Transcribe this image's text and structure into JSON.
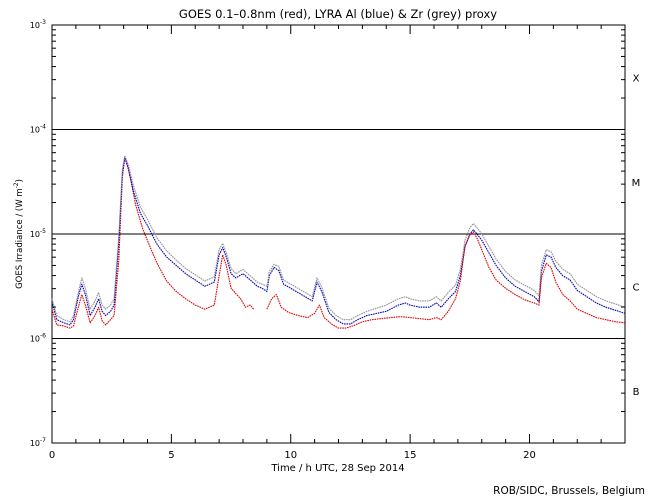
{
  "chart_data": {
    "type": "line",
    "title": "GOES 0.1–0.8nm (red), LYRA Al (blue) & Zr (grey) proxy",
    "xlabel": "Time / h UTC, 28 Sep 2014",
    "ylabel_prefix": "GOES Irradiance / (W m",
    "ylabel_exp": "-2",
    "ylabel_suffix": ")",
    "xlim": [
      0,
      24
    ],
    "ylim_log10": [
      -7,
      -3
    ],
    "x_ticks": [
      {
        "value": 0,
        "label": "0"
      },
      {
        "value": 5,
        "label": "5"
      },
      {
        "value": 10,
        "label": "10"
      },
      {
        "value": 15,
        "label": "15"
      },
      {
        "value": 20,
        "label": "20"
      }
    ],
    "y_ticks": [
      {
        "exp": -3,
        "base": "10",
        "sup": "-3"
      },
      {
        "exp": -4,
        "base": "10",
        "sup": "-4"
      },
      {
        "exp": -5,
        "base": "10",
        "sup": "-5"
      },
      {
        "exp": -6,
        "base": "10",
        "sup": "-6"
      },
      {
        "exp": -7,
        "base": "10",
        "sup": "-7"
      }
    ],
    "flare_class_lines": [
      -4,
      -5,
      -6
    ],
    "flare_classes": [
      {
        "label": "X",
        "exp": -3.5
      },
      {
        "label": "M",
        "exp": -4.5
      },
      {
        "label": "C",
        "exp": -5.5
      },
      {
        "label": "B",
        "exp": -6.5
      }
    ],
    "series": [
      {
        "name": "GOES 0.1-0.8nm",
        "color": "#e00000",
        "points": [
          [
            0,
            -5.72
          ],
          [
            0.2,
            -5.87
          ],
          [
            0.5,
            -5.88
          ],
          [
            0.75,
            -5.9
          ],
          [
            0.9,
            -5.88
          ],
          [
            1.1,
            -5.7
          ],
          [
            1.25,
            -5.58
          ],
          [
            1.4,
            -5.68
          ],
          [
            1.6,
            -5.85
          ],
          [
            1.8,
            -5.78
          ],
          [
            1.95,
            -5.7
          ],
          [
            2.1,
            -5.83
          ],
          [
            2.25,
            -5.87
          ],
          [
            2.45,
            -5.82
          ],
          [
            2.6,
            -5.78
          ],
          [
            2.8,
            -5.25
          ],
          [
            2.95,
            -4.45
          ],
          [
            3.05,
            -4.28
          ],
          [
            3.15,
            -4.32
          ],
          [
            3.3,
            -4.48
          ],
          [
            3.5,
            -4.72
          ],
          [
            3.8,
            -4.95
          ],
          [
            4.1,
            -5.12
          ],
          [
            4.4,
            -5.28
          ],
          [
            4.8,
            -5.45
          ],
          [
            5.2,
            -5.55
          ],
          [
            5.6,
            -5.62
          ],
          [
            6.0,
            -5.68
          ],
          [
            6.4,
            -5.72
          ],
          [
            6.8,
            -5.68
          ],
          [
            7.0,
            -5.4
          ],
          [
            7.15,
            -5.2
          ],
          [
            7.3,
            -5.3
          ],
          [
            7.5,
            -5.52
          ],
          [
            7.7,
            -5.57
          ],
          [
            7.9,
            -5.62
          ],
          [
            8.1,
            -5.7
          ],
          [
            8.3,
            -5.68
          ],
          [
            8.45,
            -5.72
          ]
        ]
      },
      {
        "name": "LYRA Al proxy",
        "color": "#0000c0",
        "points": [
          [
            0,
            -5.65
          ],
          [
            0.2,
            -5.82
          ],
          [
            0.5,
            -5.85
          ],
          [
            0.75,
            -5.87
          ],
          [
            0.9,
            -5.82
          ],
          [
            1.1,
            -5.6
          ],
          [
            1.25,
            -5.48
          ],
          [
            1.4,
            -5.58
          ],
          [
            1.6,
            -5.78
          ],
          [
            1.8,
            -5.7
          ],
          [
            1.95,
            -5.62
          ],
          [
            2.1,
            -5.74
          ],
          [
            2.25,
            -5.78
          ],
          [
            2.45,
            -5.74
          ],
          [
            2.6,
            -5.68
          ],
          [
            2.8,
            -5.08
          ],
          [
            2.95,
            -4.42
          ],
          [
            3.05,
            -4.27
          ],
          [
            3.2,
            -4.38
          ],
          [
            3.4,
            -4.58
          ],
          [
            3.7,
            -4.8
          ],
          [
            4.0,
            -4.92
          ],
          [
            4.4,
            -5.1
          ],
          [
            4.8,
            -5.22
          ],
          [
            5.2,
            -5.3
          ],
          [
            5.6,
            -5.38
          ],
          [
            6.0,
            -5.44
          ],
          [
            6.4,
            -5.5
          ],
          [
            6.8,
            -5.46
          ],
          [
            7.0,
            -5.2
          ],
          [
            7.15,
            -5.13
          ],
          [
            7.3,
            -5.22
          ],
          [
            7.5,
            -5.38
          ],
          [
            7.7,
            -5.42
          ],
          [
            8.0,
            -5.38
          ],
          [
            8.3,
            -5.44
          ],
          [
            8.6,
            -5.5
          ],
          [
            8.8,
            -5.52
          ],
          [
            9.0,
            -5.55
          ],
          [
            9.1,
            -5.4
          ],
          [
            9.3,
            -5.32
          ],
          [
            9.5,
            -5.35
          ],
          [
            9.7,
            -5.48
          ],
          [
            10.0,
            -5.52
          ],
          [
            10.3,
            -5.56
          ],
          [
            10.6,
            -5.6
          ],
          [
            10.9,
            -5.64
          ],
          [
            11.1,
            -5.46
          ],
          [
            11.3,
            -5.55
          ],
          [
            11.6,
            -5.75
          ],
          [
            11.9,
            -5.82
          ],
          [
            12.2,
            -5.86
          ],
          [
            12.5,
            -5.86
          ],
          [
            12.8,
            -5.82
          ],
          [
            13.2,
            -5.78
          ],
          [
            13.6,
            -5.76
          ],
          [
            14.0,
            -5.74
          ],
          [
            14.5,
            -5.68
          ],
          [
            14.8,
            -5.66
          ],
          [
            15.0,
            -5.68
          ],
          [
            15.4,
            -5.7
          ],
          [
            15.8,
            -5.7
          ],
          [
            16.1,
            -5.66
          ],
          [
            16.3,
            -5.7
          ],
          [
            16.6,
            -5.62
          ],
          [
            16.9,
            -5.55
          ],
          [
            17.1,
            -5.4
          ],
          [
            17.3,
            -5.12
          ],
          [
            17.5,
            -5.0
          ],
          [
            17.65,
            -4.96
          ],
          [
            17.8,
            -5.0
          ],
          [
            18.0,
            -5.06
          ],
          [
            18.3,
            -5.18
          ],
          [
            18.6,
            -5.3
          ],
          [
            19.0,
            -5.42
          ],
          [
            19.4,
            -5.5
          ],
          [
            19.8,
            -5.55
          ],
          [
            20.2,
            -5.6
          ],
          [
            20.4,
            -5.65
          ],
          [
            20.5,
            -5.36
          ],
          [
            20.7,
            -5.2
          ],
          [
            20.9,
            -5.22
          ],
          [
            21.1,
            -5.32
          ],
          [
            21.4,
            -5.4
          ],
          [
            21.7,
            -5.44
          ],
          [
            22.0,
            -5.54
          ],
          [
            22.4,
            -5.6
          ],
          [
            22.8,
            -5.66
          ],
          [
            23.2,
            -5.7
          ],
          [
            23.6,
            -5.73
          ],
          [
            24.0,
            -5.76
          ]
        ]
      },
      {
        "name": "LYRA Zr proxy",
        "color": "#909090",
        "points": [
          [
            0,
            -5.62
          ],
          [
            0.2,
            -5.78
          ],
          [
            0.5,
            -5.82
          ],
          [
            0.75,
            -5.84
          ],
          [
            0.9,
            -5.78
          ],
          [
            1.1,
            -5.56
          ],
          [
            1.25,
            -5.42
          ],
          [
            1.4,
            -5.52
          ],
          [
            1.6,
            -5.72
          ],
          [
            1.8,
            -5.64
          ],
          [
            1.95,
            -5.56
          ],
          [
            2.1,
            -5.68
          ],
          [
            2.25,
            -5.72
          ],
          [
            2.45,
            -5.68
          ],
          [
            2.6,
            -5.62
          ],
          [
            2.8,
            -5.02
          ],
          [
            2.95,
            -4.38
          ],
          [
            3.05,
            -4.25
          ],
          [
            3.2,
            -4.34
          ],
          [
            3.4,
            -4.53
          ],
          [
            3.7,
            -4.74
          ],
          [
            4.0,
            -4.86
          ],
          [
            4.4,
            -5.04
          ],
          [
            4.8,
            -5.16
          ],
          [
            5.2,
            -5.25
          ],
          [
            5.6,
            -5.33
          ],
          [
            6.0,
            -5.39
          ],
          [
            6.4,
            -5.45
          ],
          [
            6.8,
            -5.41
          ],
          [
            7.0,
            -5.15
          ],
          [
            7.15,
            -5.09
          ],
          [
            7.3,
            -5.18
          ],
          [
            7.5,
            -5.33
          ],
          [
            7.7,
            -5.38
          ],
          [
            8.0,
            -5.34
          ],
          [
            8.3,
            -5.4
          ],
          [
            8.6,
            -5.46
          ],
          [
            8.8,
            -5.48
          ],
          [
            9.0,
            -5.5
          ],
          [
            9.1,
            -5.36
          ],
          [
            9.3,
            -5.29
          ],
          [
            9.5,
            -5.31
          ],
          [
            9.7,
            -5.44
          ],
          [
            10.0,
            -5.48
          ],
          [
            10.3,
            -5.52
          ],
          [
            10.6,
            -5.56
          ],
          [
            10.9,
            -5.6
          ],
          [
            11.1,
            -5.42
          ],
          [
            11.3,
            -5.51
          ],
          [
            11.6,
            -5.71
          ],
          [
            11.9,
            -5.78
          ],
          [
            12.2,
            -5.82
          ],
          [
            12.5,
            -5.82
          ],
          [
            12.8,
            -5.78
          ],
          [
            13.2,
            -5.74
          ],
          [
            13.6,
            -5.71
          ],
          [
            14.0,
            -5.68
          ],
          [
            14.5,
            -5.62
          ],
          [
            14.8,
            -5.6
          ],
          [
            15.0,
            -5.62
          ],
          [
            15.4,
            -5.64
          ],
          [
            15.8,
            -5.64
          ],
          [
            16.1,
            -5.6
          ],
          [
            16.3,
            -5.64
          ],
          [
            16.6,
            -5.56
          ],
          [
            16.9,
            -5.49
          ],
          [
            17.1,
            -5.34
          ],
          [
            17.3,
            -5.06
          ],
          [
            17.5,
            -4.94
          ],
          [
            17.65,
            -4.9
          ],
          [
            17.8,
            -4.94
          ],
          [
            18.0,
            -5.0
          ],
          [
            18.3,
            -5.12
          ],
          [
            18.6,
            -5.24
          ],
          [
            19.0,
            -5.36
          ],
          [
            19.4,
            -5.44
          ],
          [
            19.8,
            -5.49
          ],
          [
            20.2,
            -5.54
          ],
          [
            20.4,
            -5.59
          ],
          [
            20.5,
            -5.3
          ],
          [
            20.7,
            -5.15
          ],
          [
            20.9,
            -5.17
          ],
          [
            21.1,
            -5.26
          ],
          [
            21.4,
            -5.34
          ],
          [
            21.7,
            -5.38
          ],
          [
            22.0,
            -5.48
          ],
          [
            22.4,
            -5.54
          ],
          [
            22.8,
            -5.6
          ],
          [
            23.2,
            -5.64
          ],
          [
            23.6,
            -5.67
          ],
          [
            24.0,
            -5.7
          ]
        ]
      },
      {
        "name": "GOES 0.1-0.8nm (cont.)",
        "color": "#e00000",
        "points": [
          [
            9.0,
            -5.72
          ],
          [
            9.2,
            -5.62
          ],
          [
            9.4,
            -5.58
          ],
          [
            9.6,
            -5.7
          ],
          [
            9.9,
            -5.75
          ],
          [
            10.3,
            -5.78
          ],
          [
            10.7,
            -5.8
          ],
          [
            11.0,
            -5.76
          ],
          [
            11.2,
            -5.68
          ],
          [
            11.4,
            -5.8
          ],
          [
            11.7,
            -5.86
          ],
          [
            12.0,
            -5.9
          ],
          [
            12.3,
            -5.9
          ],
          [
            12.6,
            -5.88
          ],
          [
            13.0,
            -5.84
          ],
          [
            13.4,
            -5.82
          ],
          [
            13.8,
            -5.81
          ],
          [
            14.2,
            -5.8
          ],
          [
            14.6,
            -5.79
          ],
          [
            15.0,
            -5.8
          ],
          [
            15.4,
            -5.81
          ],
          [
            15.8,
            -5.82
          ],
          [
            16.1,
            -5.8
          ],
          [
            16.3,
            -5.82
          ],
          [
            16.6,
            -5.74
          ],
          [
            16.9,
            -5.62
          ],
          [
            17.1,
            -5.45
          ],
          [
            17.3,
            -5.12
          ],
          [
            17.5,
            -5.01
          ],
          [
            17.65,
            -4.98
          ],
          [
            17.8,
            -5.04
          ],
          [
            18.0,
            -5.15
          ],
          [
            18.3,
            -5.32
          ],
          [
            18.6,
            -5.44
          ],
          [
            19.0,
            -5.52
          ],
          [
            19.4,
            -5.58
          ],
          [
            19.8,
            -5.63
          ],
          [
            20.2,
            -5.66
          ],
          [
            20.4,
            -5.68
          ],
          [
            20.5,
            -5.42
          ],
          [
            20.7,
            -5.28
          ],
          [
            20.9,
            -5.32
          ],
          [
            21.1,
            -5.46
          ],
          [
            21.4,
            -5.58
          ],
          [
            21.7,
            -5.64
          ],
          [
            22.0,
            -5.72
          ],
          [
            22.4,
            -5.76
          ],
          [
            22.8,
            -5.8
          ],
          [
            23.2,
            -5.82
          ],
          [
            23.6,
            -5.84
          ],
          [
            24.0,
            -5.85
          ]
        ]
      }
    ]
  },
  "credit": "ROB/SIDC, Brussels, Belgium"
}
